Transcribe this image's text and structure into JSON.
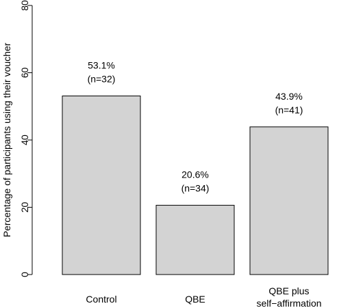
{
  "chart_data": {
    "type": "bar",
    "categories": [
      [
        "Control"
      ],
      [
        "QBE"
      ],
      [
        "QBE plus",
        "self−affirmation"
      ]
    ],
    "values": [
      53.1,
      20.6,
      43.9
    ],
    "data_labels": [
      [
        "53.1%",
        "(n=32)"
      ],
      [
        "20.6%",
        "(n=34)"
      ],
      [
        "43.9%",
        "(n=41)"
      ]
    ],
    "ylabel": "Percentage of participants using their voucher",
    "xlabel": "",
    "ylim": [
      0,
      80
    ],
    "yticks": [
      0,
      20,
      40,
      60,
      80
    ],
    "grid": false,
    "bar_color": "#d3d3d3",
    "edge_color": "#000000"
  }
}
